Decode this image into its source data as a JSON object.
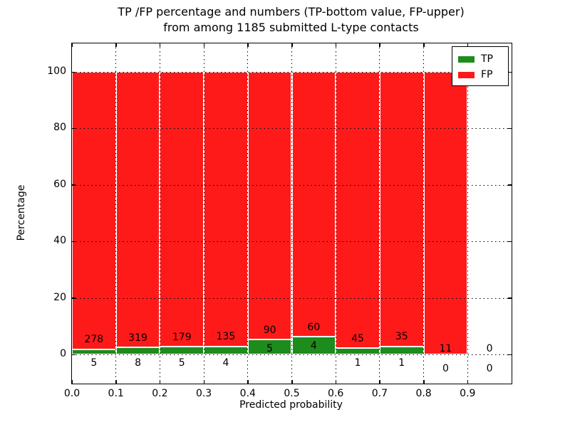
{
  "figure": {
    "title_line1": "TP /FP percentage and numbers (TP-bottom value, FP-upper)",
    "title_line2": "from among 1185 submitted L-type contacts",
    "xlabel": "Predicted probability",
    "ylabel": "Percentage"
  },
  "legend": {
    "items": [
      {
        "label": "TP",
        "color": "#1d8c1d"
      },
      {
        "label": "FP",
        "color": "#ff1a1a"
      }
    ]
  },
  "chart_data": {
    "type": "bar",
    "stacked": true,
    "normalized_to_percent": true,
    "title": "TP /FP percentage and numbers (TP-bottom value, FP-upper) from among 1185 submitted L-type contacts",
    "xlabel": "Predicted probability",
    "ylabel": "Percentage",
    "total_submitted": 1185,
    "bin_width": 0.1,
    "bin_starts": [
      0.0,
      0.1,
      0.2,
      0.3,
      0.4,
      0.5,
      0.6,
      0.7,
      0.8,
      0.9
    ],
    "series": [
      {
        "name": "TP",
        "color": "#1d8c1d",
        "counts": [
          5,
          8,
          5,
          4,
          5,
          4,
          1,
          1,
          0,
          0
        ]
      },
      {
        "name": "FP",
        "color": "#ff1a1a",
        "counts": [
          278,
          319,
          179,
          135,
          90,
          60,
          45,
          35,
          11,
          0
        ]
      }
    ],
    "x_tick_labels": [
      "0.0",
      "0.1",
      "0.2",
      "0.3",
      "0.4",
      "0.5",
      "0.6",
      "0.7",
      "0.8",
      "0.9"
    ],
    "y_tick_labels": [
      "0",
      "20",
      "40",
      "60",
      "80",
      "100"
    ],
    "y_tick_values": [
      0,
      20,
      40,
      60,
      80,
      100
    ],
    "xlim": [
      0.0,
      1.0
    ],
    "ylim": [
      -11,
      110
    ],
    "grid": "dotted",
    "legend_position": "upper right",
    "bar_edge_color": "#ffffff"
  }
}
